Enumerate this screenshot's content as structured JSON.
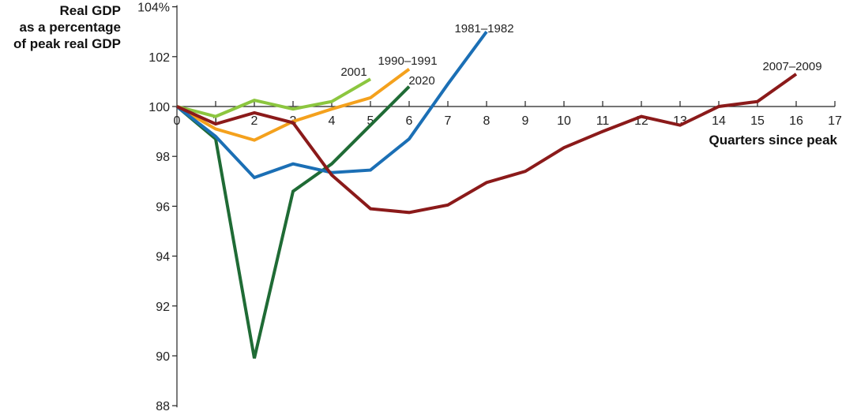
{
  "chart_data": {
    "type": "line",
    "ylabel_lines": [
      "Real GDP",
      "as a percentage",
      "of peak real GDP"
    ],
    "xlabel": "Quarters since peak",
    "xlim": [
      0,
      17
    ],
    "ylim": [
      88,
      104
    ],
    "x_ticks": [
      0,
      1,
      2,
      3,
      4,
      5,
      6,
      7,
      8,
      9,
      10,
      11,
      12,
      13,
      14,
      15,
      16,
      17
    ],
    "y_ticks": [
      88,
      90,
      92,
      94,
      96,
      98,
      100,
      102,
      104
    ],
    "y_tick_labels": [
      "88",
      "90",
      "92",
      "94",
      "96",
      "98",
      "100",
      "102",
      "104%"
    ],
    "grid": false,
    "series": [
      {
        "name": "2001",
        "color": "#8cc63f",
        "x": [
          0,
          1,
          2,
          3,
          4,
          5
        ],
        "values": [
          100.0,
          99.6,
          100.25,
          99.9,
          100.2,
          101.1
        ]
      },
      {
        "name": "1990–1991",
        "color": "#f4a11d",
        "x": [
          0,
          1,
          2,
          3,
          4,
          5,
          6
        ],
        "values": [
          100.0,
          99.1,
          98.65,
          99.4,
          99.9,
          100.35,
          101.5
        ]
      },
      {
        "name": "2020",
        "color": "#1f6b35",
        "x": [
          0,
          1,
          2,
          3,
          4,
          5,
          6
        ],
        "values": [
          100.0,
          98.7,
          89.9,
          96.6,
          97.7,
          99.25,
          100.8
        ]
      },
      {
        "name": "1981–1982",
        "color": "#1b6fb5",
        "x": [
          0,
          1,
          2,
          3,
          4,
          5,
          6,
          7,
          8
        ],
        "values": [
          100.0,
          98.8,
          97.15,
          97.7,
          97.35,
          97.45,
          98.7,
          100.9,
          103.0
        ]
      },
      {
        "name": "2007–2009",
        "color": "#8b1a1a",
        "x": [
          0,
          1,
          2,
          3,
          4,
          5,
          6,
          7,
          8,
          9,
          10,
          11,
          12,
          13,
          14,
          15,
          16
        ],
        "values": [
          100.0,
          99.3,
          99.75,
          99.35,
          97.25,
          95.9,
          95.75,
          96.05,
          96.95,
          97.4,
          98.35,
          99.0,
          99.6,
          99.25,
          100.0,
          100.2,
          101.3
        ]
      }
    ]
  }
}
